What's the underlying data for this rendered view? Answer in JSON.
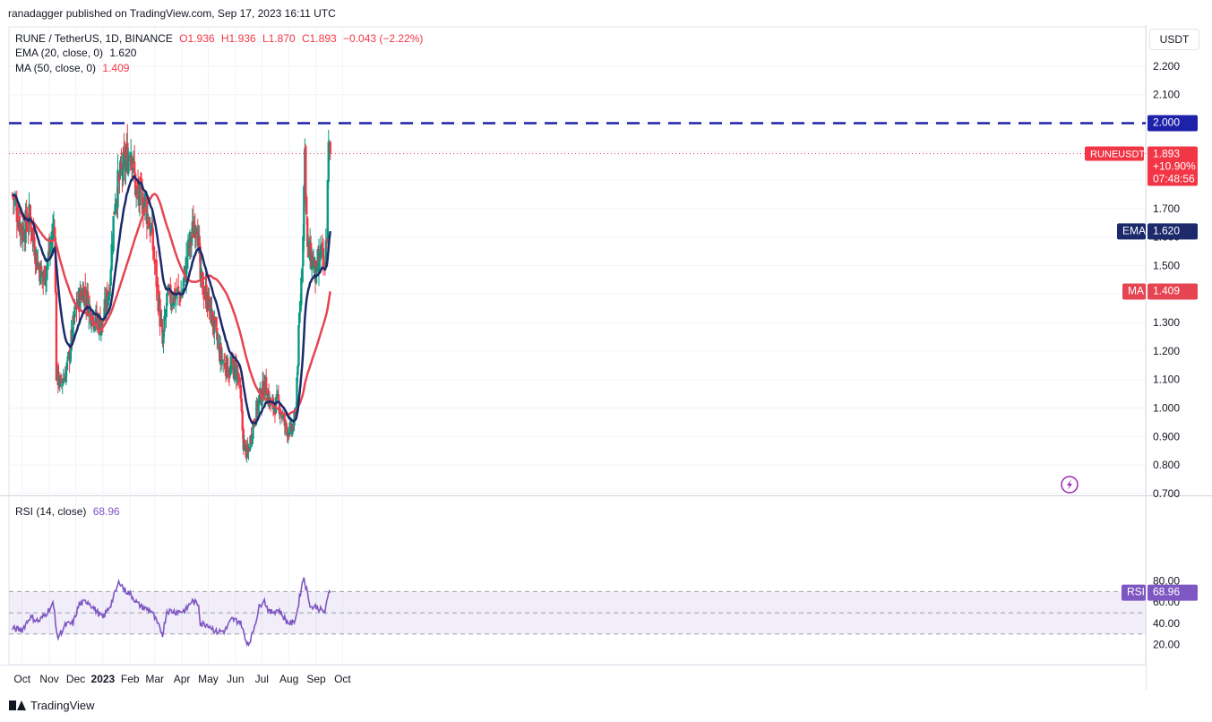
{
  "header": {
    "published": "ranadagger published on TradingView.com, Sep 17, 2023 16:11 UTC"
  },
  "legend": {
    "symbol": "RUNE / TetherUS, 1D, BINANCE",
    "ohlc": {
      "o": "O1.936",
      "h": "H1.936",
      "l": "L1.870",
      "c": "C1.893",
      "chg": "−0.043 (−2.22%)"
    },
    "ema": {
      "label": "EMA (20, close, 0)",
      "value": "1.620"
    },
    "ma": {
      "label": "MA (50, close, 0)",
      "value": "1.409"
    },
    "rsi": {
      "label": "RSI (14, close)",
      "value": "68.96"
    }
  },
  "currency_button": "USDT",
  "price_tags": {
    "level": "2.000",
    "symbol_name": "RUNEUSDT",
    "symbol_price": "1.893",
    "change": "+10.90%",
    "countdown": "07:48:56",
    "ema_name": "EMA",
    "ema_value": "1.620",
    "ma_name": "MA",
    "ma_value": "1.409",
    "rsi_name": "RSI",
    "rsi_value": "68.96"
  },
  "footer": {
    "brand": "TradingView"
  },
  "colors": {
    "up": "#089981",
    "down": "#f23645",
    "ema": "#1c2a6b",
    "ma": "#e54552",
    "rsi": "#7e57c2",
    "level": "#1e22aa"
  },
  "chart_data": [
    {
      "type": "candlestick",
      "title": "RUNE / TetherUS, 1D, BINANCE",
      "y_ticks": [
        "2.200",
        "2.100",
        "2.000",
        "1.900",
        "1.800",
        "1.700",
        "1.600",
        "1.500",
        "1.400",
        "1.300",
        "1.200",
        "1.100",
        "1.000",
        "0.900",
        "0.800",
        "0.700"
      ],
      "x_ticks": [
        "Oct",
        "Nov",
        "Dec",
        "2023",
        "Feb",
        "Mar",
        "Apr",
        "May",
        "Jun",
        "Jul",
        "Aug",
        "Sep",
        "Oct"
      ],
      "ylim": [
        0.7,
        2.25
      ],
      "horizontal_line": 2.0,
      "last_price": 1.893,
      "close_path": [
        [
          "2022-09-20",
          1.75
        ],
        [
          "2022-10-01",
          1.62
        ],
        [
          "2022-10-10",
          1.67
        ],
        [
          "2022-10-18",
          1.52
        ],
        [
          "2022-10-25",
          1.45
        ],
        [
          "2022-11-02",
          1.56
        ],
        [
          "2022-11-07",
          1.66
        ],
        [
          "2022-11-09",
          1.12
        ],
        [
          "2022-11-14",
          1.08
        ],
        [
          "2022-11-22",
          1.15
        ],
        [
          "2022-12-01",
          1.35
        ],
        [
          "2022-12-10",
          1.42
        ],
        [
          "2022-12-18",
          1.34
        ],
        [
          "2022-12-24",
          1.31
        ],
        [
          "2022-12-31",
          1.29
        ],
        [
          "2023-01-08",
          1.42
        ],
        [
          "2023-01-15",
          1.75
        ],
        [
          "2023-01-25",
          1.85
        ],
        [
          "2023-02-02",
          1.92
        ],
        [
          "2023-02-08",
          1.75
        ],
        [
          "2023-02-18",
          1.72
        ],
        [
          "2023-02-25",
          1.62
        ],
        [
          "2023-03-04",
          1.42
        ],
        [
          "2023-03-10",
          1.22
        ],
        [
          "2023-03-15",
          1.38
        ],
        [
          "2023-03-25",
          1.4
        ],
        [
          "2023-04-01",
          1.4
        ],
        [
          "2023-04-08",
          1.55
        ],
        [
          "2023-04-18",
          1.68
        ],
        [
          "2023-04-22",
          1.45
        ],
        [
          "2023-05-01",
          1.37
        ],
        [
          "2023-05-08",
          1.28
        ],
        [
          "2023-05-15",
          1.18
        ],
        [
          "2023-05-25",
          1.13
        ],
        [
          "2023-06-01",
          1.14
        ],
        [
          "2023-06-05",
          1.1
        ],
        [
          "2023-06-10",
          0.88
        ],
        [
          "2023-06-15",
          0.83
        ],
        [
          "2023-06-20",
          0.93
        ],
        [
          "2023-06-28",
          1.03
        ],
        [
          "2023-07-05",
          1.08
        ],
        [
          "2023-07-12",
          1.0
        ],
        [
          "2023-07-20",
          1.02
        ],
        [
          "2023-07-28",
          0.93
        ],
        [
          "2023-08-04",
          0.92
        ],
        [
          "2023-08-08",
          0.96
        ],
        [
          "2023-08-12",
          1.25
        ],
        [
          "2023-08-16",
          1.52
        ],
        [
          "2023-08-19",
          1.9
        ],
        [
          "2023-08-22",
          1.55
        ],
        [
          "2023-08-28",
          1.52
        ],
        [
          "2023-09-01",
          1.45
        ],
        [
          "2023-09-06",
          1.55
        ],
        [
          "2023-09-10",
          1.47
        ],
        [
          "2023-09-13",
          1.62
        ],
        [
          "2023-09-15",
          1.9
        ],
        [
          "2023-09-17",
          1.893
        ]
      ],
      "series": [
        {
          "name": "EMA (20, close, 0)",
          "last": 1.62
        },
        {
          "name": "MA (50, close, 0)",
          "last": 1.409
        }
      ]
    },
    {
      "type": "line",
      "title": "RSI (14, close)",
      "y_ticks": [
        "80.00",
        "60.00",
        "40.00",
        "20.00"
      ],
      "ylim": [
        15,
        90
      ],
      "band": [
        30,
        70
      ],
      "midline": 50,
      "values_path": [
        [
          "2022-09-20",
          35
        ],
        [
          "2022-10-01",
          34
        ],
        [
          "2022-10-10",
          46
        ],
        [
          "2022-10-20",
          42
        ],
        [
          "2022-10-28",
          49
        ],
        [
          "2022-11-05",
          58
        ],
        [
          "2022-11-07",
          51
        ],
        [
          "2022-11-10",
          26
        ],
        [
          "2022-11-20",
          39
        ],
        [
          "2022-11-28",
          40
        ],
        [
          "2022-12-05",
          58
        ],
        [
          "2022-12-15",
          61
        ],
        [
          "2022-12-24",
          52
        ],
        [
          "2023-01-01",
          45
        ],
        [
          "2023-01-10",
          58
        ],
        [
          "2023-01-20",
          80
        ],
        [
          "2023-01-25",
          72
        ],
        [
          "2023-02-02",
          67
        ],
        [
          "2023-02-10",
          58
        ],
        [
          "2023-02-18",
          54
        ],
        [
          "2023-02-25",
          52
        ],
        [
          "2023-03-05",
          38
        ],
        [
          "2023-03-10",
          30
        ],
        [
          "2023-03-15",
          52
        ],
        [
          "2023-03-25",
          51
        ],
        [
          "2023-04-05",
          52
        ],
        [
          "2023-04-12",
          61
        ],
        [
          "2023-04-20",
          58
        ],
        [
          "2023-04-22",
          40
        ],
        [
          "2023-05-01",
          39
        ],
        [
          "2023-05-10",
          32
        ],
        [
          "2023-05-20",
          33
        ],
        [
          "2023-05-28",
          44
        ],
        [
          "2023-06-05",
          42
        ],
        [
          "2023-06-08",
          39
        ],
        [
          "2023-06-12",
          25
        ],
        [
          "2023-06-16",
          21
        ],
        [
          "2023-06-20",
          29
        ],
        [
          "2023-06-28",
          55
        ],
        [
          "2023-07-03",
          63
        ],
        [
          "2023-07-10",
          50
        ],
        [
          "2023-07-20",
          53
        ],
        [
          "2023-07-30",
          41
        ],
        [
          "2023-08-06",
          40
        ],
        [
          "2023-08-10",
          50
        ],
        [
          "2023-08-15",
          74
        ],
        [
          "2023-08-18",
          84
        ],
        [
          "2023-08-20",
          75
        ],
        [
          "2023-08-26",
          55
        ],
        [
          "2023-09-01",
          56
        ],
        [
          "2023-09-07",
          52
        ],
        [
          "2023-09-11",
          51
        ],
        [
          "2023-09-14",
          63
        ],
        [
          "2023-09-16",
          72
        ],
        [
          "2023-09-17",
          68.96
        ]
      ]
    }
  ]
}
